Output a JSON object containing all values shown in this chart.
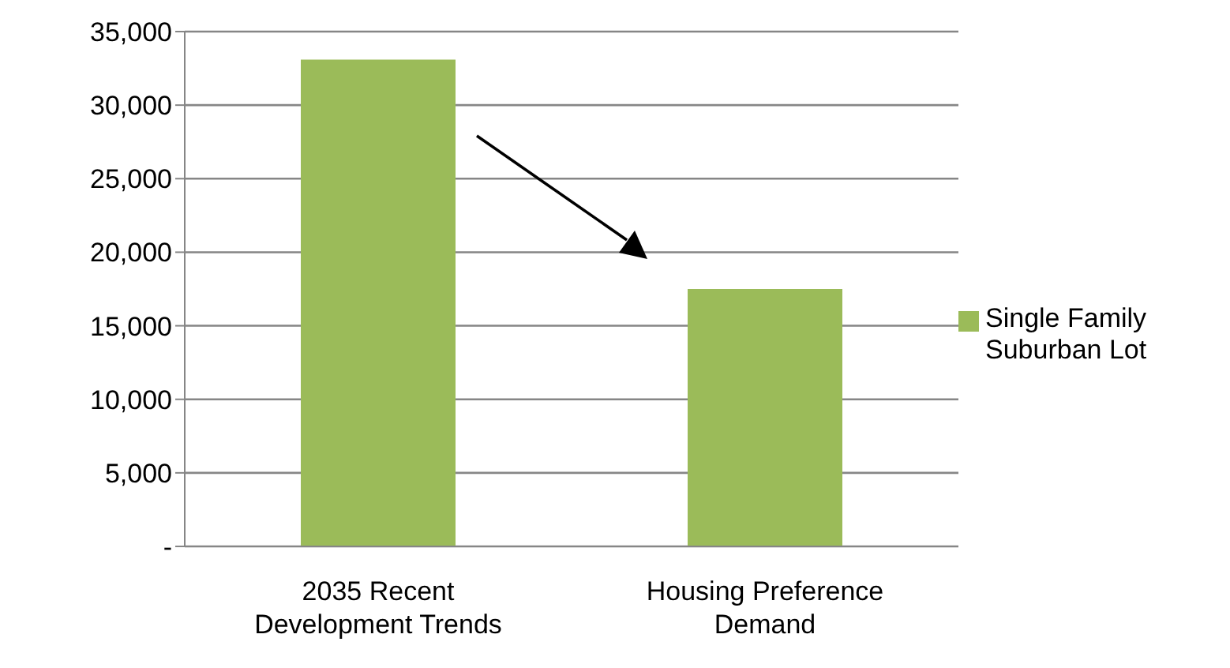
{
  "chart_data": {
    "type": "bar",
    "categories": [
      "2035 Recent Development Trends",
      "Housing Preference Demand"
    ],
    "series": [
      {
        "name": "Single Family Suburban Lot",
        "color": "#9bbb59",
        "values": [
          33100,
          17500
        ]
      }
    ],
    "ylim": [
      0,
      35000
    ],
    "yticks": [
      {
        "value": 0,
        "label": "-"
      },
      {
        "value": 5000,
        "label": "5,000"
      },
      {
        "value": 10000,
        "label": "10,000"
      },
      {
        "value": 15000,
        "label": "15,000"
      },
      {
        "value": 20000,
        "label": "20,000"
      },
      {
        "value": 25000,
        "label": "25,000"
      },
      {
        "value": 30000,
        "label": "30,000"
      },
      {
        "value": 35000,
        "label": "35,000"
      }
    ],
    "grid": "y",
    "legend": "right"
  }
}
